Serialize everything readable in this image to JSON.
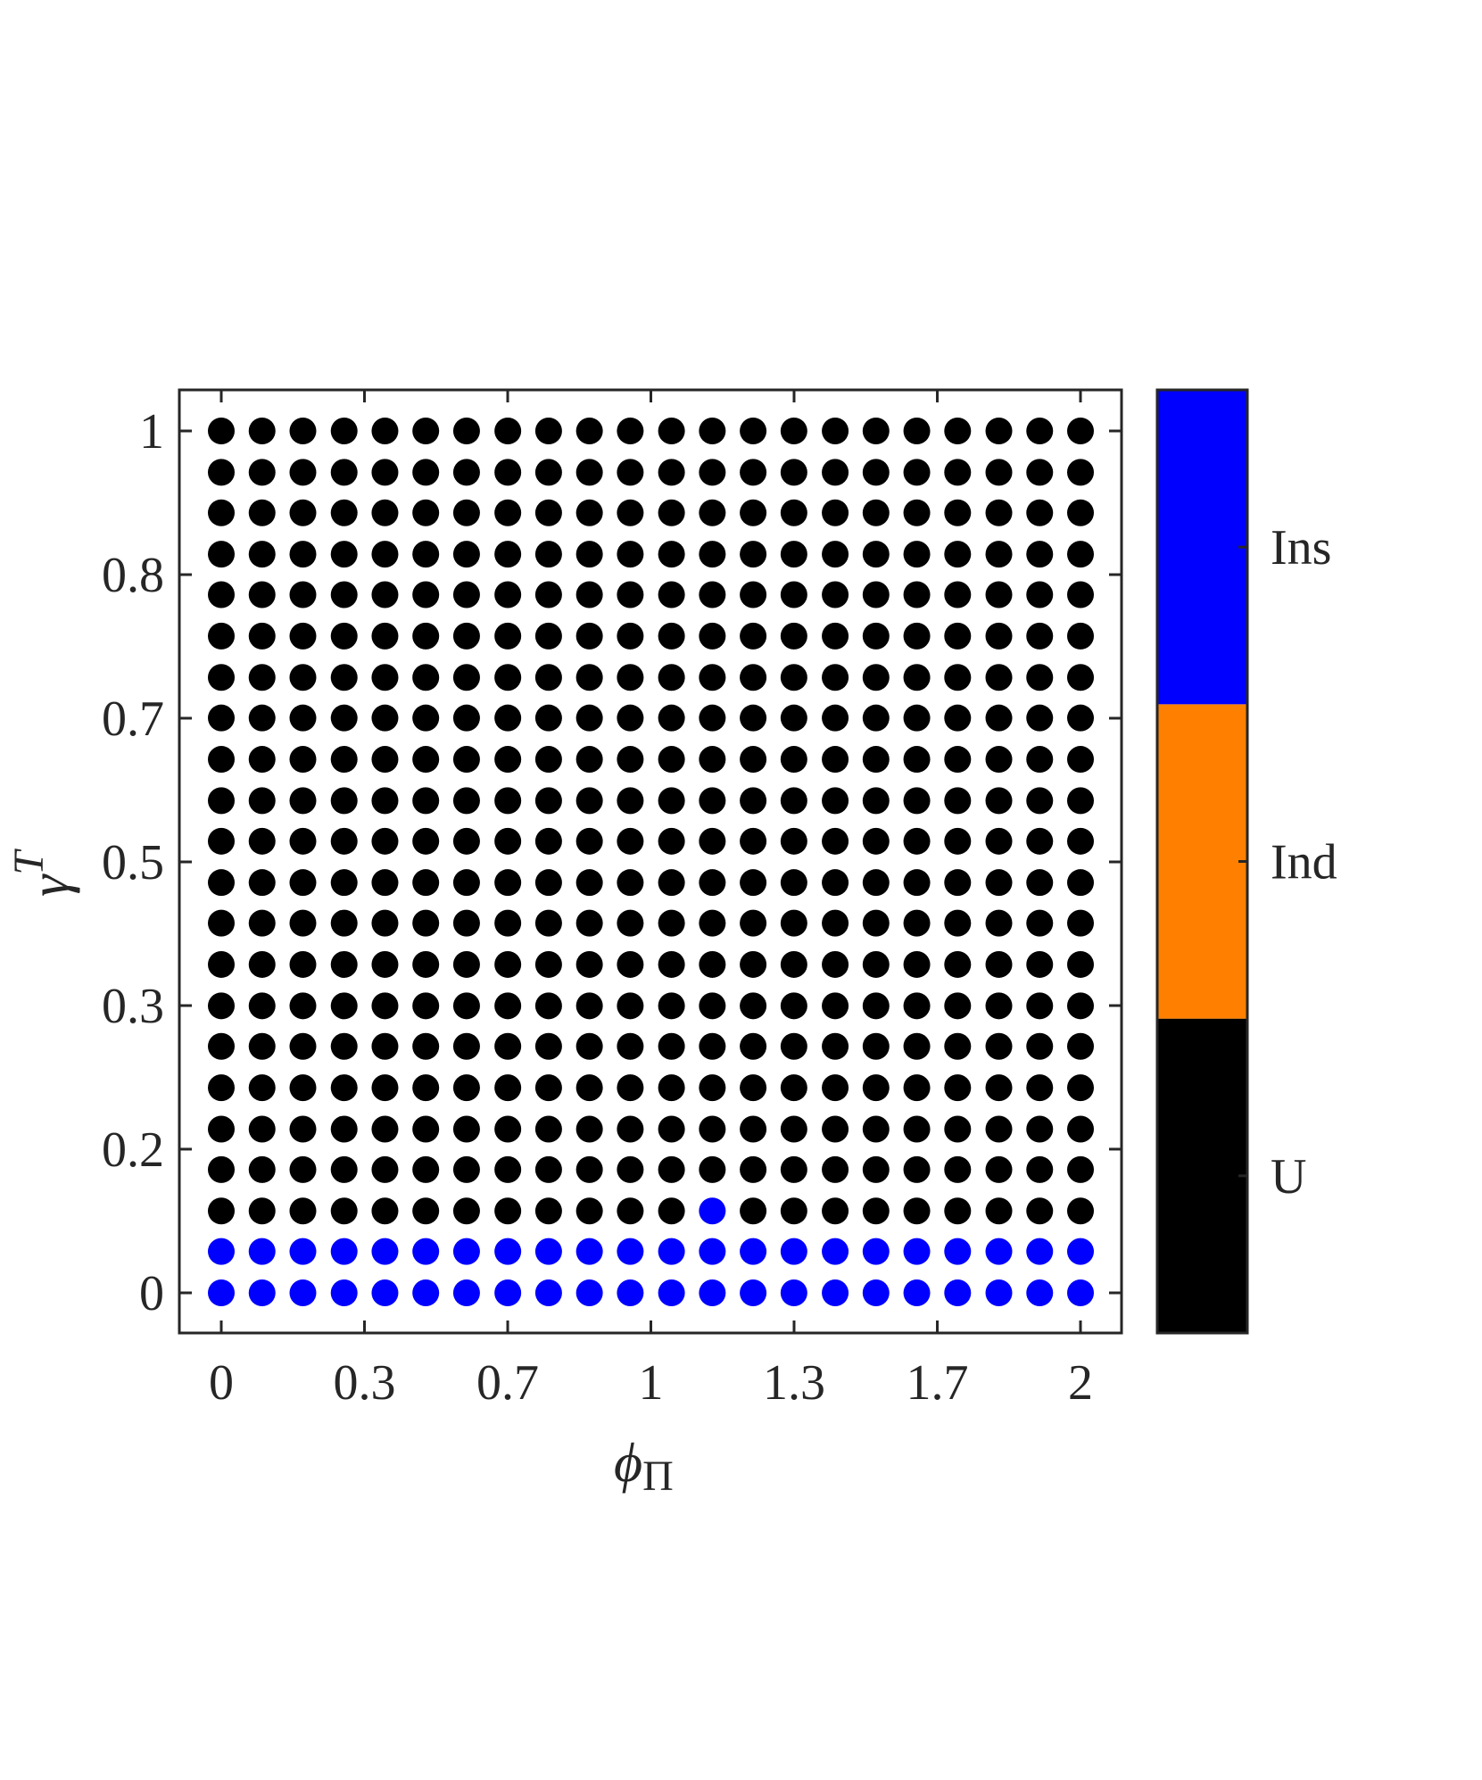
{
  "chart_data": {
    "type": "scatter",
    "title": "",
    "xlabel": "ϕ",
    "xlabel_sub": "Π",
    "ylabel": "γ",
    "ylabel_sup": "T",
    "xlim": [
      -0.1,
      2.1
    ],
    "ylim": [
      -0.05,
      1.05
    ],
    "grid": false,
    "x_ticks": [
      0,
      0.3333,
      0.6667,
      1,
      1.3333,
      1.6667,
      2
    ],
    "x_tick_labels": [
      "0",
      "0.3",
      "0.7",
      "1",
      "1.3",
      "1.7",
      "2"
    ],
    "y_ticks": [
      0,
      0.1667,
      0.3333,
      0.5,
      0.6667,
      0.8333,
      1
    ],
    "y_tick_labels": [
      "0",
      "0.2",
      "0.3",
      "0.5",
      "0.7",
      "0.8",
      "1"
    ],
    "x": [
      0,
      0.095,
      0.19,
      0.286,
      0.381,
      0.476,
      0.571,
      0.667,
      0.762,
      0.857,
      0.952,
      1.048,
      1.143,
      1.238,
      1.333,
      1.429,
      1.524,
      1.619,
      1.714,
      1.81,
      1.905,
      2
    ],
    "y": [
      0,
      0.048,
      0.095,
      0.143,
      0.19,
      0.238,
      0.286,
      0.333,
      0.381,
      0.429,
      0.476,
      0.524,
      0.571,
      0.619,
      0.667,
      0.714,
      0.762,
      0.81,
      0.857,
      0.905,
      0.952,
      1
    ],
    "state_rows_note_order": "rows follow y ascending, columns follow x ascending",
    "states": [
      [
        "Ins",
        "Ins",
        "Ins",
        "Ins",
        "Ins",
        "Ins",
        "Ins",
        "Ins",
        "Ins",
        "Ins",
        "Ins",
        "Ins",
        "Ins",
        "Ins",
        "Ins",
        "Ins",
        "Ins",
        "Ins",
        "Ins",
        "Ins",
        "Ins",
        "Ins"
      ],
      [
        "Ins",
        "Ins",
        "Ins",
        "Ins",
        "Ins",
        "Ins",
        "Ins",
        "Ins",
        "Ins",
        "Ins",
        "Ins",
        "Ins",
        "Ins",
        "Ins",
        "Ins",
        "Ins",
        "Ins",
        "Ins",
        "Ins",
        "Ins",
        "Ins",
        "Ins"
      ],
      [
        "U",
        "U",
        "U",
        "U",
        "U",
        "U",
        "U",
        "U",
        "U",
        "U",
        "U",
        "U",
        "Ins",
        "U",
        "U",
        "U",
        "U",
        "U",
        "U",
        "U",
        "U",
        "U"
      ],
      [
        "U",
        "U",
        "U",
        "U",
        "U",
        "U",
        "U",
        "U",
        "U",
        "U",
        "U",
        "U",
        "U",
        "U",
        "U",
        "U",
        "U",
        "U",
        "U",
        "U",
        "U",
        "U"
      ],
      [
        "U",
        "U",
        "U",
        "U",
        "U",
        "U",
        "U",
        "U",
        "U",
        "U",
        "U",
        "U",
        "U",
        "U",
        "U",
        "U",
        "U",
        "U",
        "U",
        "U",
        "U",
        "U"
      ],
      [
        "U",
        "U",
        "U",
        "U",
        "U",
        "U",
        "U",
        "U",
        "U",
        "U",
        "U",
        "U",
        "U",
        "U",
        "U",
        "U",
        "U",
        "U",
        "U",
        "U",
        "U",
        "U"
      ],
      [
        "U",
        "U",
        "U",
        "U",
        "U",
        "U",
        "U",
        "U",
        "U",
        "U",
        "U",
        "U",
        "U",
        "U",
        "U",
        "U",
        "U",
        "U",
        "U",
        "U",
        "U",
        "U"
      ],
      [
        "U",
        "U",
        "U",
        "U",
        "U",
        "U",
        "U",
        "U",
        "U",
        "U",
        "U",
        "U",
        "U",
        "U",
        "U",
        "U",
        "U",
        "U",
        "U",
        "U",
        "U",
        "U"
      ],
      [
        "U",
        "U",
        "U",
        "U",
        "U",
        "U",
        "U",
        "U",
        "U",
        "U",
        "U",
        "U",
        "U",
        "U",
        "U",
        "U",
        "U",
        "U",
        "U",
        "U",
        "U",
        "U"
      ],
      [
        "U",
        "U",
        "U",
        "U",
        "U",
        "U",
        "U",
        "U",
        "U",
        "U",
        "U",
        "U",
        "U",
        "U",
        "U",
        "U",
        "U",
        "U",
        "U",
        "U",
        "U",
        "U"
      ],
      [
        "U",
        "U",
        "U",
        "U",
        "U",
        "U",
        "U",
        "U",
        "U",
        "U",
        "U",
        "U",
        "U",
        "U",
        "U",
        "U",
        "U",
        "U",
        "U",
        "U",
        "U",
        "U"
      ],
      [
        "U",
        "U",
        "U",
        "U",
        "U",
        "U",
        "U",
        "U",
        "U",
        "U",
        "U",
        "U",
        "U",
        "U",
        "U",
        "U",
        "U",
        "U",
        "U",
        "U",
        "U",
        "U"
      ],
      [
        "U",
        "U",
        "U",
        "U",
        "U",
        "U",
        "U",
        "U",
        "U",
        "U",
        "U",
        "U",
        "U",
        "U",
        "U",
        "U",
        "U",
        "U",
        "U",
        "U",
        "U",
        "U"
      ],
      [
        "U",
        "U",
        "U",
        "U",
        "U",
        "U",
        "U",
        "U",
        "U",
        "U",
        "U",
        "U",
        "U",
        "U",
        "U",
        "U",
        "U",
        "U",
        "U",
        "U",
        "U",
        "U"
      ],
      [
        "U",
        "U",
        "U",
        "U",
        "U",
        "U",
        "U",
        "U",
        "U",
        "U",
        "U",
        "U",
        "U",
        "U",
        "U",
        "U",
        "U",
        "U",
        "U",
        "U",
        "U",
        "U"
      ],
      [
        "U",
        "U",
        "U",
        "U",
        "U",
        "U",
        "U",
        "U",
        "U",
        "U",
        "U",
        "U",
        "U",
        "U",
        "U",
        "U",
        "U",
        "U",
        "U",
        "U",
        "U",
        "U"
      ],
      [
        "U",
        "U",
        "U",
        "U",
        "U",
        "U",
        "U",
        "U",
        "U",
        "U",
        "U",
        "U",
        "U",
        "U",
        "U",
        "U",
        "U",
        "U",
        "U",
        "U",
        "U",
        "U"
      ],
      [
        "U",
        "U",
        "U",
        "U",
        "U",
        "U",
        "U",
        "U",
        "U",
        "U",
        "U",
        "U",
        "U",
        "U",
        "U",
        "U",
        "U",
        "U",
        "U",
        "U",
        "U",
        "U"
      ],
      [
        "U",
        "U",
        "U",
        "U",
        "U",
        "U",
        "U",
        "U",
        "U",
        "U",
        "U",
        "U",
        "U",
        "U",
        "U",
        "U",
        "U",
        "U",
        "U",
        "U",
        "U",
        "U"
      ],
      [
        "U",
        "U",
        "U",
        "U",
        "U",
        "U",
        "U",
        "U",
        "U",
        "U",
        "U",
        "U",
        "U",
        "U",
        "U",
        "U",
        "U",
        "U",
        "U",
        "U",
        "U",
        "U"
      ],
      [
        "U",
        "U",
        "U",
        "U",
        "U",
        "U",
        "U",
        "U",
        "U",
        "U",
        "U",
        "U",
        "U",
        "U",
        "U",
        "U",
        "U",
        "U",
        "U",
        "U",
        "U",
        "U"
      ],
      [
        "U",
        "U",
        "U",
        "U",
        "U",
        "U",
        "U",
        "U",
        "U",
        "U",
        "U",
        "U",
        "U",
        "U",
        "U",
        "U",
        "U",
        "U",
        "U",
        "U",
        "U",
        "U"
      ]
    ],
    "colorbar": {
      "categories": [
        {
          "label": "U",
          "color": "#000000"
        },
        {
          "label": "Ind",
          "color": "#FF8000"
        },
        {
          "label": "Ins",
          "color": "#0000FF"
        }
      ]
    },
    "colors": {
      "axis": "#262626"
    }
  }
}
